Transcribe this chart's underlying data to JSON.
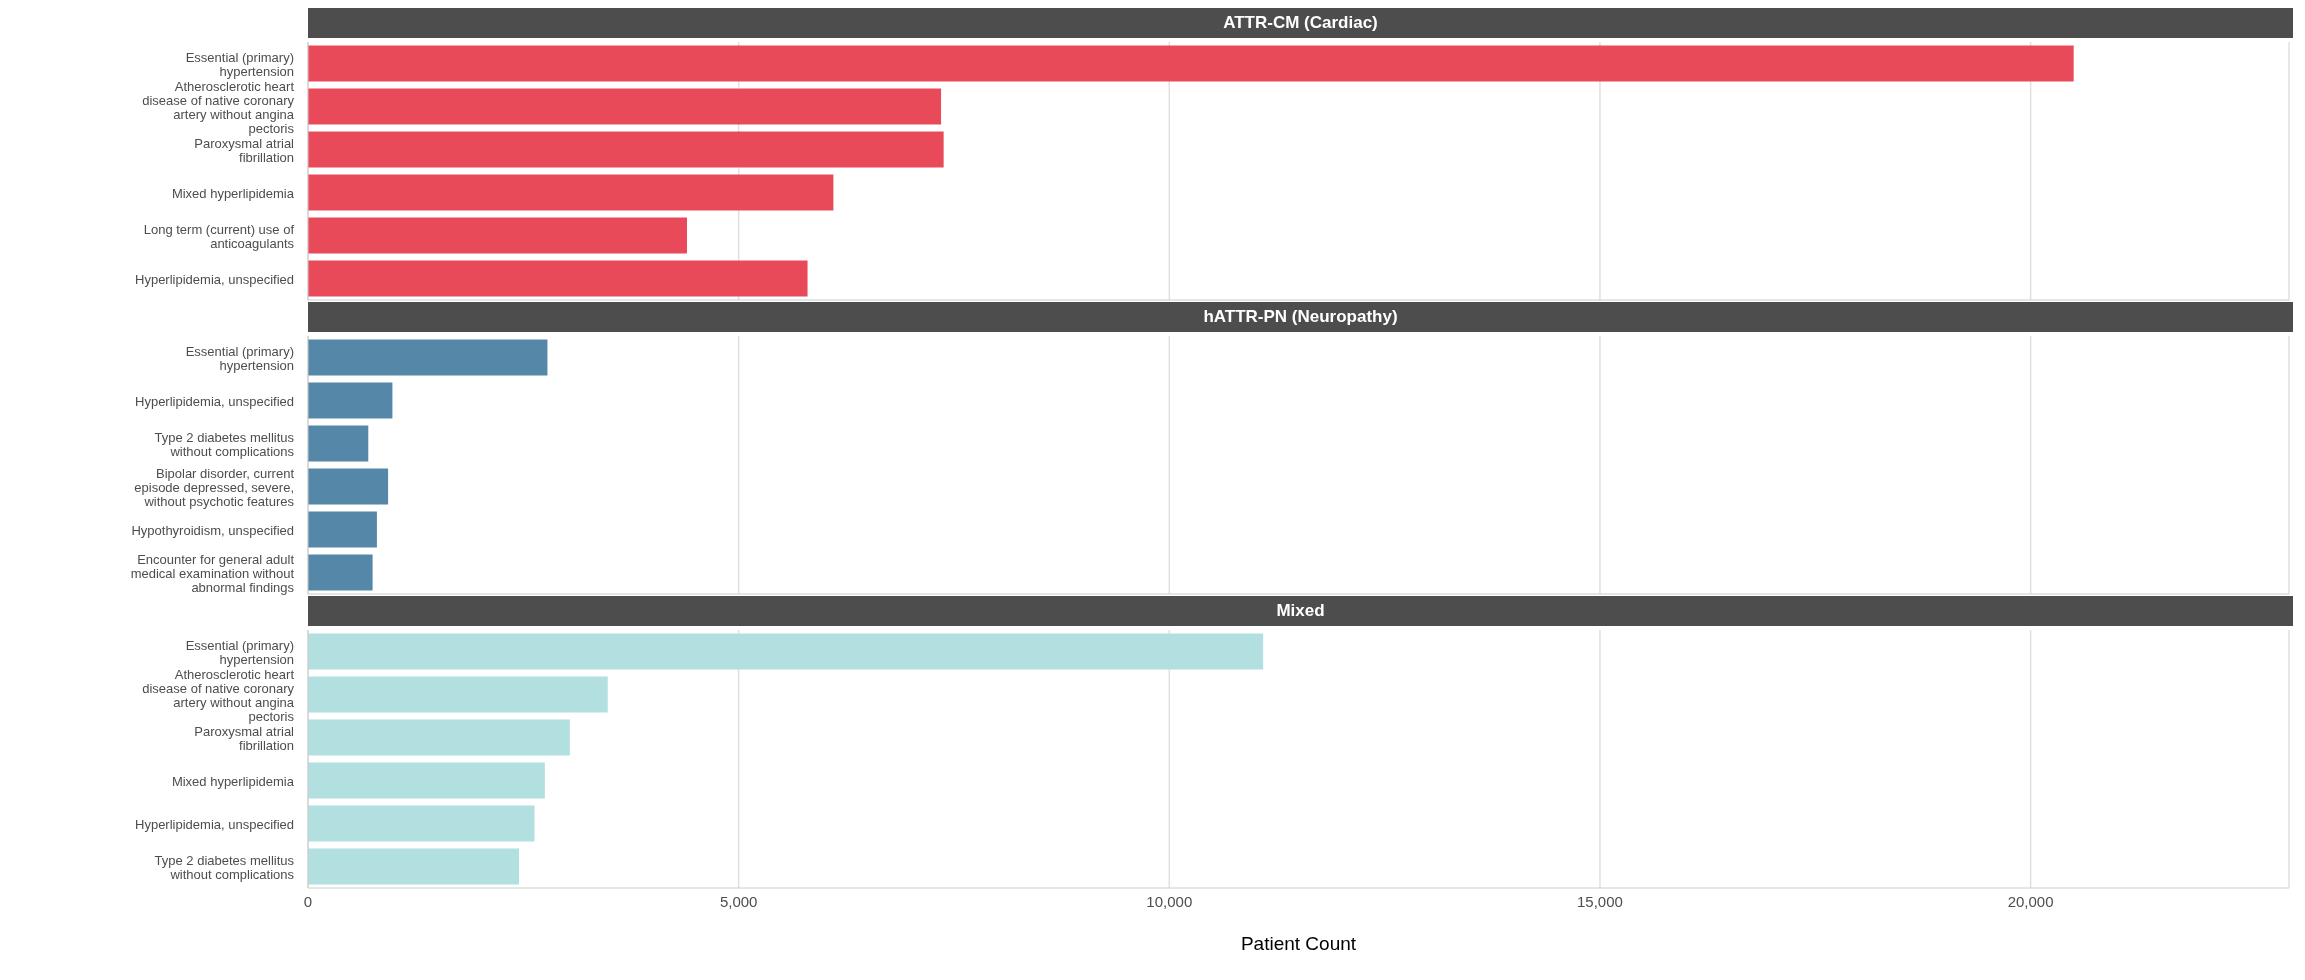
{
  "chart_data": [
    {
      "type": "bar",
      "title": "ATTR-CM (Cardiac)",
      "orientation": "horizontal",
      "categories": [
        "Essential (primary) hypertension",
        "Atherosclerotic heart disease of native coronary artery without angina pectoris",
        "Paroxysmal atrial fibrillation",
        "Mixed hyperlipidemia",
        "Long term (current) use of anticoagulants",
        "Hyperlipidemia, unspecified"
      ],
      "series": [
        {
          "color": "#e84a5a",
          "values": [
            20500,
            7350,
            7380,
            6100,
            4400,
            5800
          ]
        }
      ],
      "xlim": [
        0,
        23000
      ],
      "xticks": [
        0,
        5000,
        10000,
        15000,
        20000
      ],
      "grid": "x",
      "tick_labels": "y"
    },
    {
      "type": "bar",
      "title": "hATTR-PN (Neuropathy)",
      "orientation": "horizontal",
      "categories": [
        "Essential (primary) hypertension",
        "Hyperlipidemia, unspecified",
        "Type 2 diabetes mellitus without complications",
        "Bipolar disorder, current episode depressed, severe, without psychotic features",
        "Hypothyroidism, unspecified",
        "Encounter for general adult medical examination without abnormal findings"
      ],
      "series": [
        {
          "color": "#5587a8",
          "values": [
            2780,
            980,
            700,
            930,
            800,
            750
          ]
        }
      ],
      "xlim": [
        0,
        23000
      ],
      "xticks": [
        0,
        5000,
        10000,
        15000,
        20000
      ],
      "grid": "x",
      "tick_labels": "y"
    },
    {
      "type": "bar",
      "title": "Mixed",
      "xlabel": "Patient Count",
      "orientation": "horizontal",
      "categories": [
        "Essential (primary) hypertension",
        "Atherosclerotic heart disease of native coronary artery without angina pectoris",
        "Paroxysmal atrial fibrillation",
        "Mixed hyperlipidemia",
        "Hyperlipidemia, unspecified",
        "Type 2 diabetes mellitus without complications"
      ],
      "series": [
        {
          "color": "#b2dfe0",
          "values": [
            11090,
            3480,
            3040,
            2750,
            2630,
            2450
          ]
        }
      ],
      "xlim": [
        0,
        23000
      ],
      "xticks": [
        {
          "value": 0,
          "label": "0"
        },
        {
          "value": 5000,
          "label": "5,000"
        },
        {
          "value": 10000,
          "label": "10,000"
        },
        {
          "value": 15000,
          "label": "15,000"
        },
        {
          "value": 20000,
          "label": "20,000"
        }
      ],
      "grid": "x"
    }
  ]
}
